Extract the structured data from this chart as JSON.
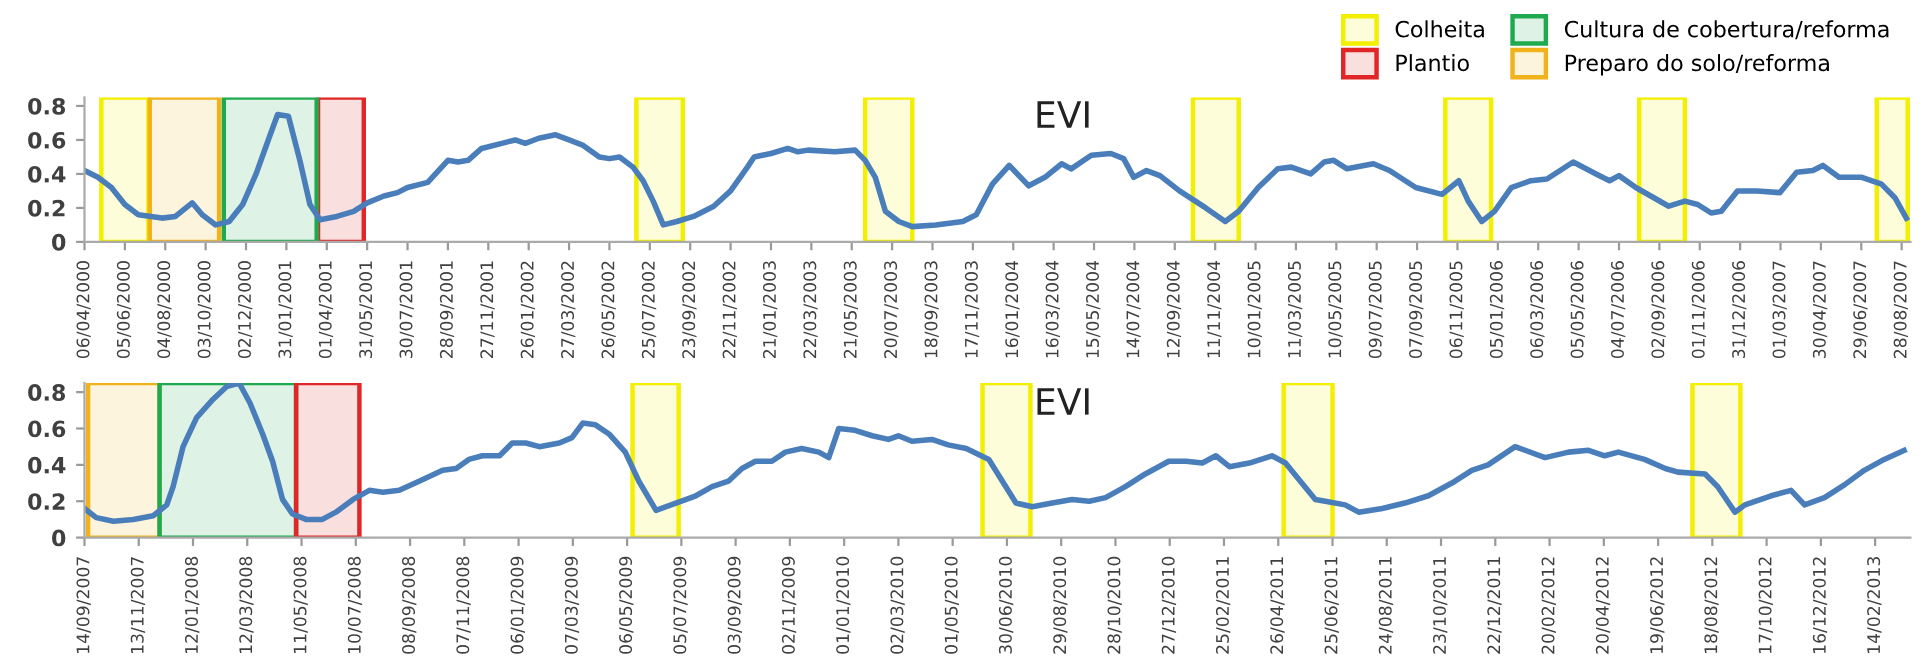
{
  "chart_data": [
    {
      "type": "line",
      "title": "EVI",
      "legend": "top right",
      "x": [
        "2000-04-06",
        "2000-04-26",
        "2000-05-16",
        "2000-06-05",
        "2000-06-25",
        "2000-07-30",
        "2000-08-19",
        "2000-09-13",
        "2000-09-28",
        "2000-10-18",
        "2000-11-07",
        "2000-11-27",
        "2000-12-17",
        "2001-01-06",
        "2001-01-18",
        "2001-02-03",
        "2001-02-20",
        "2001-03-07",
        "2001-03-22",
        "2001-04-16",
        "2001-05-11",
        "2001-05-31",
        "2001-06-25",
        "2001-07-15",
        "2001-07-30",
        "2001-08-29",
        "2001-09-28",
        "2001-10-13",
        "2001-10-28",
        "2001-11-17",
        "2001-12-17",
        "2002-01-06",
        "2002-01-21",
        "2002-02-10",
        "2002-03-07",
        "2002-03-27",
        "2002-04-16",
        "2002-05-11",
        "2002-05-26",
        "2002-06-10",
        "2002-06-30",
        "2002-07-15",
        "2002-07-30",
        "2002-08-14",
        "2002-09-03",
        "2002-09-28",
        "2002-10-28",
        "2002-11-22",
        "2002-12-17",
        "2002-12-27",
        "2003-01-21",
        "2003-02-15",
        "2003-03-02",
        "2003-03-17",
        "2003-04-26",
        "2003-05-26",
        "2003-06-10",
        "2003-06-25",
        "2003-07-10",
        "2003-07-30",
        "2003-08-19",
        "2003-09-23",
        "2003-11-02",
        "2003-11-22",
        "2003-12-16",
        "2004-01-10",
        "2004-02-08",
        "2004-03-03",
        "2004-03-28",
        "2004-04-11",
        "2004-05-11",
        "2004-06-09",
        "2004-06-28",
        "2004-07-13",
        "2004-08-01",
        "2004-08-21",
        "2004-09-19",
        "2004-10-28",
        "2004-11-26",
        "2004-12-16",
        "2005-01-14",
        "2005-02-12",
        "2005-03-04",
        "2005-04-02",
        "2005-04-22",
        "2005-05-06",
        "2005-05-26",
        "2005-07-04",
        "2005-07-28",
        "2005-09-05",
        "2005-10-14",
        "2005-11-08",
        "2005-11-22",
        "2005-12-12",
        "2005-12-31",
        "2006-01-25",
        "2006-02-23",
        "2006-03-19",
        "2006-04-27",
        "2006-05-31",
        "2006-06-20",
        "2006-07-04",
        "2006-07-29",
        "2006-09-16",
        "2006-10-10",
        "2006-10-29",
        "2006-11-18",
        "2006-12-03",
        "2006-12-27",
        "2007-01-25",
        "2007-02-28",
        "2007-03-25",
        "2007-04-18",
        "2007-05-03",
        "2007-05-27",
        "2007-06-30",
        "2007-07-29",
        "2007-08-18",
        "2007-09-04"
      ],
      "series": [
        {
          "color": "#4a7ebb",
          "values": [
            0.42,
            0.38,
            0.32,
            0.22,
            0.16,
            0.14,
            0.15,
            0.23,
            0.16,
            0.1,
            0.12,
            0.22,
            0.4,
            0.62,
            0.75,
            0.74,
            0.48,
            0.22,
            0.13,
            0.15,
            0.18,
            0.23,
            0.27,
            0.29,
            0.32,
            0.35,
            0.48,
            0.47,
            0.48,
            0.55,
            0.58,
            0.6,
            0.58,
            0.61,
            0.63,
            0.6,
            0.57,
            0.5,
            0.49,
            0.5,
            0.44,
            0.36,
            0.24,
            0.1,
            0.12,
            0.15,
            0.21,
            0.3,
            0.44,
            0.5,
            0.52,
            0.55,
            0.53,
            0.54,
            0.53,
            0.54,
            0.48,
            0.38,
            0.18,
            0.12,
            0.09,
            0.1,
            0.12,
            0.16,
            0.34,
            0.45,
            0.33,
            0.38,
            0.46,
            0.43,
            0.51,
            0.52,
            0.49,
            0.38,
            0.42,
            0.39,
            0.3,
            0.2,
            0.12,
            0.18,
            0.32,
            0.43,
            0.44,
            0.4,
            0.47,
            0.48,
            0.43,
            0.46,
            0.42,
            0.32,
            0.28,
            0.36,
            0.24,
            0.12,
            0.18,
            0.32,
            0.36,
            0.37,
            0.47,
            0.4,
            0.36,
            0.39,
            0.32,
            0.21,
            0.24,
            0.22,
            0.17,
            0.18,
            0.3,
            0.3,
            0.29,
            0.41,
            0.42,
            0.45,
            0.38,
            0.38,
            0.34,
            0.26,
            0.14
          ]
        }
      ],
      "xlim": [
        "2000-04-06",
        "2007-09-10"
      ],
      "xticks": [
        {
          "value": "2000-04-06",
          "label": "06/04/2000"
        },
        {
          "value": "2000-06-05",
          "label": "05/06/2000"
        },
        {
          "value": "2000-08-04",
          "label": "04/08/2000"
        },
        {
          "value": "2000-10-03",
          "label": "03/10/2000"
        },
        {
          "value": "2000-12-02",
          "label": "02/12/2000"
        },
        {
          "value": "2001-01-31",
          "label": "31/01/2001"
        },
        {
          "value": "2001-04-01",
          "label": "01/04/2001"
        },
        {
          "value": "2001-05-31",
          "label": "31/05/2001"
        },
        {
          "value": "2001-07-30",
          "label": "30/07/2001"
        },
        {
          "value": "2001-09-28",
          "label": "28/09/2001"
        },
        {
          "value": "2001-11-27",
          "label": "27/11/2001"
        },
        {
          "value": "2002-01-26",
          "label": "26/01/2002"
        },
        {
          "value": "2002-03-27",
          "label": "27/03/2002"
        },
        {
          "value": "2002-05-26",
          "label": "26/05/2002"
        },
        {
          "value": "2002-07-25",
          "label": "25/07/2002"
        },
        {
          "value": "2002-09-23",
          "label": "23/09/2002"
        },
        {
          "value": "2002-11-22",
          "label": "22/11/2002"
        },
        {
          "value": "2003-01-21",
          "label": "21/01/2003"
        },
        {
          "value": "2003-03-22",
          "label": "22/03/2003"
        },
        {
          "value": "2003-05-21",
          "label": "21/05/2003"
        },
        {
          "value": "2003-07-20",
          "label": "20/07/2003"
        },
        {
          "value": "2003-09-18",
          "label": "18/09/2003"
        },
        {
          "value": "2003-11-17",
          "label": "17/11/2003"
        },
        {
          "value": "2004-01-16",
          "label": "16/01/2004"
        },
        {
          "value": "2004-03-16",
          "label": "16/03/2004"
        },
        {
          "value": "2004-05-15",
          "label": "15/05/2004"
        },
        {
          "value": "2004-07-14",
          "label": "14/07/2004"
        },
        {
          "value": "2004-09-12",
          "label": "12/09/2004"
        },
        {
          "value": "2004-11-11",
          "label": "11/11/2004"
        },
        {
          "value": "2005-01-10",
          "label": "10/01/2005"
        },
        {
          "value": "2005-03-11",
          "label": "11/03/2005"
        },
        {
          "value": "2005-05-10",
          "label": "10/05/2005"
        },
        {
          "value": "2005-07-09",
          "label": "09/07/2005"
        },
        {
          "value": "2005-09-07",
          "label": "07/09/2005"
        },
        {
          "value": "2005-11-06",
          "label": "06/11/2005"
        },
        {
          "value": "2006-01-05",
          "label": "05/01/2006"
        },
        {
          "value": "2006-03-06",
          "label": "06/03/2006"
        },
        {
          "value": "2006-05-05",
          "label": "05/05/2006"
        },
        {
          "value": "2006-07-04",
          "label": "04/07/2006"
        },
        {
          "value": "2006-09-02",
          "label": "02/09/2006"
        },
        {
          "value": "2006-11-01",
          "label": "01/11/2006"
        },
        {
          "value": "2006-12-31",
          "label": "31/12/2006"
        },
        {
          "value": "2007-03-01",
          "label": "01/03/2007"
        },
        {
          "value": "2007-04-30",
          "label": "30/04/2007"
        },
        {
          "value": "2007-06-29",
          "label": "29/06/2007"
        },
        {
          "value": "2007-08-28",
          "label": "28/08/2007"
        }
      ],
      "ylim": [
        0,
        0.85
      ],
      "yticks": [
        0,
        0.2,
        0.4,
        0.6,
        0.8
      ],
      "bands": [
        {
          "axis": "x",
          "from": "2000-05-01",
          "to": "2000-07-10",
          "label": "Colheita",
          "color": "#f2ef00"
        },
        {
          "axis": "x",
          "from": "2001-03-19",
          "to": "2001-05-26",
          "label": "Plantio",
          "color": "#e02626"
        },
        {
          "axis": "x",
          "from": "2000-10-30",
          "to": "2001-03-17",
          "label": "Cultura de cobertura/reforma",
          "color": "#1faa50"
        },
        {
          "axis": "x",
          "from": "2000-07-12",
          "to": "2000-10-23",
          "label": "Preparo do solo/reforma",
          "color": "#f0b31c"
        },
        {
          "axis": "x",
          "from": "2002-07-05",
          "to": "2002-09-12",
          "color": "#f2ef00"
        },
        {
          "axis": "x",
          "from": "2003-06-10",
          "to": "2003-08-19",
          "color": "#f2ef00"
        },
        {
          "axis": "x",
          "from": "2004-10-09",
          "to": "2004-12-16",
          "color": "#f2ef00"
        },
        {
          "axis": "x",
          "from": "2005-10-19",
          "to": "2005-12-26",
          "color": "#f2ef00"
        },
        {
          "axis": "x",
          "from": "2006-08-03",
          "to": "2006-10-10",
          "color": "#f2ef00"
        },
        {
          "axis": "x",
          "from": "2007-07-22",
          "to": "2007-09-06",
          "color": "#f2ef00"
        }
      ]
    },
    {
      "type": "line",
      "title": "EVI",
      "x": [
        "2007-09-14",
        "2007-09-27",
        "2007-10-16",
        "2007-11-07",
        "2007-11-29",
        "2007-12-14",
        "2007-12-21",
        "2008-01-01",
        "2008-01-16",
        "2008-02-03",
        "2008-02-18",
        "2008-03-03",
        "2008-03-15",
        "2008-03-29",
        "2008-04-09",
        "2008-04-20",
        "2008-05-01",
        "2008-05-16",
        "2008-06-03",
        "2008-06-18",
        "2008-07-07",
        "2008-07-25",
        "2008-08-09",
        "2008-08-27",
        "2008-09-18",
        "2008-10-14",
        "2008-10-29",
        "2008-11-12",
        "2008-11-27",
        "2008-12-16",
        "2008-12-30",
        "2009-01-14",
        "2009-01-29",
        "2009-02-20",
        "2009-03-06",
        "2009-03-18",
        "2009-04-01",
        "2009-04-16",
        "2009-05-04",
        "2009-05-19",
        "2009-06-07",
        "2009-06-29",
        "2009-07-21",
        "2009-08-08",
        "2009-08-26",
        "2009-09-10",
        "2009-09-25",
        "2009-10-13",
        "2009-10-28",
        "2009-11-15",
        "2009-12-04",
        "2009-12-15",
        "2009-12-26",
        "2010-01-13",
        "2010-02-01",
        "2010-02-19",
        "2010-03-02",
        "2010-03-17",
        "2010-04-08",
        "2010-04-26",
        "2010-05-16",
        "2010-06-10",
        "2010-06-25",
        "2010-07-10",
        "2010-07-28",
        "2010-08-19",
        "2010-09-10",
        "2010-09-29",
        "2010-10-17",
        "2010-11-08",
        "2010-11-30",
        "2010-12-26",
        "2011-01-14",
        "2011-02-01",
        "2011-02-16",
        "2011-03-03",
        "2011-03-25",
        "2011-04-19",
        "2011-05-04",
        "2011-05-22",
        "2011-06-06",
        "2011-06-17",
        "2011-07-09",
        "2011-07-24",
        "2011-08-19",
        "2011-09-13",
        "2011-10-09",
        "2011-11-04",
        "2011-11-26",
        "2011-12-14",
        "2012-01-13",
        "2012-02-15",
        "2012-03-12",
        "2012-04-03",
        "2012-04-21",
        "2012-05-06",
        "2012-06-04",
        "2012-06-27",
        "2012-07-11",
        "2012-08-10",
        "2012-08-24",
        "2012-09-12",
        "2012-09-23",
        "2012-10-22",
        "2012-11-13",
        "2012-11-28",
        "2012-12-20",
        "2013-01-11",
        "2013-02-02",
        "2013-02-24",
        "2013-03-18"
      ],
      "series": [
        {
          "color": "#4a7ebb",
          "values": [
            0.16,
            0.11,
            0.09,
            0.1,
            0.12,
            0.18,
            0.28,
            0.5,
            0.66,
            0.76,
            0.83,
            0.85,
            0.74,
            0.57,
            0.42,
            0.21,
            0.13,
            0.1,
            0.1,
            0.14,
            0.21,
            0.26,
            0.25,
            0.26,
            0.31,
            0.37,
            0.38,
            0.43,
            0.45,
            0.45,
            0.52,
            0.52,
            0.5,
            0.52,
            0.55,
            0.63,
            0.62,
            0.57,
            0.47,
            0.31,
            0.15,
            0.19,
            0.23,
            0.28,
            0.31,
            0.38,
            0.42,
            0.42,
            0.47,
            0.49,
            0.47,
            0.44,
            0.6,
            0.59,
            0.56,
            0.54,
            0.56,
            0.53,
            0.54,
            0.51,
            0.49,
            0.43,
            0.31,
            0.19,
            0.17,
            0.19,
            0.21,
            0.2,
            0.22,
            0.28,
            0.35,
            0.42,
            0.42,
            0.41,
            0.45,
            0.39,
            0.41,
            0.45,
            0.41,
            0.3,
            0.21,
            0.2,
            0.18,
            0.14,
            0.16,
            0.19,
            0.23,
            0.3,
            0.37,
            0.4,
            0.5,
            0.44,
            0.47,
            0.48,
            0.45,
            0.47,
            0.43,
            0.38,
            0.36,
            0.35,
            0.28,
            0.14,
            0.18,
            0.23,
            0.26,
            0.18,
            0.22,
            0.29,
            0.37,
            0.43,
            0.48
          ]
        }
      ],
      "xlim": [
        "2007-09-14",
        "2013-03-25"
      ],
      "xticks": [
        {
          "value": "2007-09-14",
          "label": "14/09/2007"
        },
        {
          "value": "2007-11-13",
          "label": "13/11/2007"
        },
        {
          "value": "2008-01-12",
          "label": "12/01/2008"
        },
        {
          "value": "2008-03-12",
          "label": "12/03/2008"
        },
        {
          "value": "2008-05-11",
          "label": "11/05/2008"
        },
        {
          "value": "2008-07-10",
          "label": "10/07/2008"
        },
        {
          "value": "2008-09-08",
          "label": "08/09/2008"
        },
        {
          "value": "2008-11-07",
          "label": "07/11/2008"
        },
        {
          "value": "2009-01-06",
          "label": "06/01/2009"
        },
        {
          "value": "2009-03-07",
          "label": "07/03/2009"
        },
        {
          "value": "2009-05-06",
          "label": "06/05/2009"
        },
        {
          "value": "2009-07-05",
          "label": "05/07/2009"
        },
        {
          "value": "2009-09-03",
          "label": "03/09/2009"
        },
        {
          "value": "2009-11-02",
          "label": "02/11/2009"
        },
        {
          "value": "2010-01-01",
          "label": "01/01/2010"
        },
        {
          "value": "2010-03-02",
          "label": "02/03/2010"
        },
        {
          "value": "2010-05-01",
          "label": "01/05/2010"
        },
        {
          "value": "2010-06-30",
          "label": "30/06/2010"
        },
        {
          "value": "2010-08-29",
          "label": "29/08/2010"
        },
        {
          "value": "2010-10-28",
          "label": "28/10/2010"
        },
        {
          "value": "2010-12-27",
          "label": "27/12/2010"
        },
        {
          "value": "2011-02-25",
          "label": "25/02/2011"
        },
        {
          "value": "2011-04-26",
          "label": "26/04/2011"
        },
        {
          "value": "2011-06-25",
          "label": "25/06/2011"
        },
        {
          "value": "2011-08-24",
          "label": "24/08/2011"
        },
        {
          "value": "2011-10-23",
          "label": "23/10/2011"
        },
        {
          "value": "2011-12-22",
          "label": "22/12/2011"
        },
        {
          "value": "2012-02-20",
          "label": "20/02/2012"
        },
        {
          "value": "2012-04-20",
          "label": "20/04/2012"
        },
        {
          "value": "2012-06-19",
          "label": "19/06/2012"
        },
        {
          "value": "2012-08-18",
          "label": "18/08/2012"
        },
        {
          "value": "2012-10-17",
          "label": "17/10/2012"
        },
        {
          "value": "2012-12-16",
          "label": "16/12/2012"
        },
        {
          "value": "2013-02-14",
          "label": "14/02/2013"
        }
      ],
      "ylim": [
        0,
        0.85
      ],
      "yticks": [
        0,
        0.2,
        0.4,
        0.6,
        0.8
      ],
      "bands": [
        {
          "axis": "x",
          "from": "2007-09-18",
          "to": "2007-12-06",
          "color": "#f0b31c"
        },
        {
          "axis": "x",
          "from": "2007-12-06",
          "to": "2008-05-05",
          "color": "#1faa50"
        },
        {
          "axis": "x",
          "from": "2008-05-05",
          "to": "2008-07-14",
          "color": "#e02626"
        },
        {
          "axis": "x",
          "from": "2009-05-12",
          "to": "2009-07-02",
          "color": "#f2ef00"
        },
        {
          "axis": "x",
          "from": "2010-06-03",
          "to": "2010-07-26",
          "color": "#f2ef00"
        },
        {
          "axis": "x",
          "from": "2011-05-02",
          "to": "2011-06-25",
          "color": "#f2ef00"
        },
        {
          "axis": "x",
          "from": "2012-07-27",
          "to": "2012-09-18",
          "color": "#f2ef00"
        }
      ]
    }
  ]
}
